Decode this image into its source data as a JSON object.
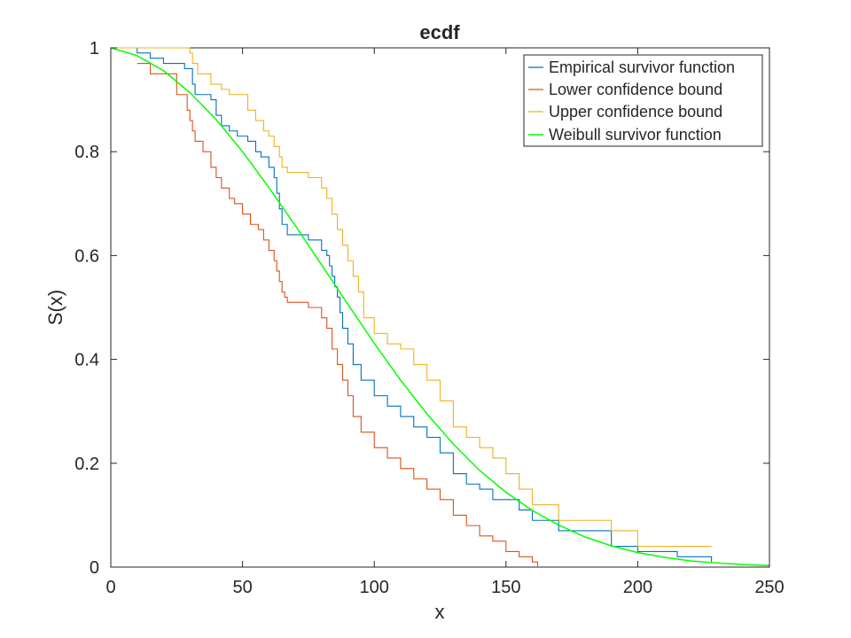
{
  "chart_data": {
    "type": "line",
    "title": "ecdf",
    "xlabel": "x",
    "ylabel": "S(x)",
    "xlim": [
      0,
      250
    ],
    "ylim": [
      0,
      1
    ],
    "xticks": [
      0,
      50,
      100,
      150,
      200,
      250
    ],
    "yticks": [
      0,
      0.2,
      0.4,
      0.6,
      0.8,
      1
    ],
    "ytick_labels": [
      "0",
      "0.2",
      "0.4",
      "0.6",
      "0.8",
      "1"
    ],
    "grid": false,
    "legend_position": "top-right",
    "series": [
      {
        "name": "Empirical survivor function",
        "color": "#0072bd",
        "style": "step",
        "x": [
          0,
          10,
          15,
          20,
          28,
          31,
          32,
          38,
          40,
          42,
          45,
          48,
          52,
          55,
          57,
          60,
          62,
          63,
          64,
          65,
          67,
          75,
          80,
          82,
          83,
          84,
          85,
          86,
          87,
          88,
          90,
          92,
          95,
          100,
          105,
          110,
          115,
          120,
          125,
          130,
          135,
          140,
          145,
          155,
          160,
          170,
          190,
          200,
          215,
          228
        ],
        "y": [
          1,
          0.99,
          0.98,
          0.97,
          0.96,
          0.93,
          0.91,
          0.9,
          0.87,
          0.85,
          0.84,
          0.83,
          0.82,
          0.8,
          0.79,
          0.77,
          0.75,
          0.72,
          0.69,
          0.66,
          0.64,
          0.63,
          0.61,
          0.6,
          0.58,
          0.56,
          0.54,
          0.52,
          0.49,
          0.46,
          0.43,
          0.39,
          0.36,
          0.33,
          0.31,
          0.29,
          0.27,
          0.25,
          0.22,
          0.18,
          0.16,
          0.15,
          0.13,
          0.11,
          0.09,
          0.07,
          0.04,
          0.03,
          0.02,
          0.01
        ]
      },
      {
        "name": "Lower confidence bound",
        "color": "#d95319",
        "style": "step",
        "x": [
          10,
          15,
          25,
          29,
          30,
          31,
          32,
          35,
          38,
          40,
          42,
          45,
          47,
          50,
          53,
          56,
          58,
          60,
          62,
          63,
          64,
          65,
          66,
          67,
          75,
          80,
          82,
          84,
          86,
          88,
          90,
          92,
          95,
          100,
          105,
          110,
          115,
          120,
          125,
          130,
          135,
          140,
          145,
          150,
          155,
          160,
          162
        ],
        "y": [
          0.97,
          0.95,
          0.91,
          0.88,
          0.86,
          0.84,
          0.82,
          0.8,
          0.77,
          0.75,
          0.73,
          0.71,
          0.7,
          0.68,
          0.66,
          0.65,
          0.63,
          0.61,
          0.59,
          0.57,
          0.55,
          0.53,
          0.52,
          0.51,
          0.5,
          0.48,
          0.46,
          0.42,
          0.39,
          0.36,
          0.33,
          0.29,
          0.26,
          0.23,
          0.21,
          0.19,
          0.17,
          0.15,
          0.13,
          0.1,
          0.08,
          0.06,
          0.05,
          0.03,
          0.02,
          0.01,
          0
        ]
      },
      {
        "name": "Upper confidence bound",
        "color": "#edb120",
        "style": "step",
        "x": [
          0,
          30,
          31,
          33,
          38,
          42,
          45,
          52,
          55,
          58,
          60,
          62,
          64,
          65,
          67,
          70,
          75,
          80,
          82,
          84,
          86,
          88,
          90,
          92,
          94,
          96,
          100,
          105,
          110,
          115,
          120,
          125,
          130,
          135,
          140,
          145,
          150,
          155,
          160,
          170,
          190,
          200,
          228
        ],
        "y": [
          1,
          0.99,
          0.97,
          0.95,
          0.93,
          0.92,
          0.91,
          0.88,
          0.86,
          0.84,
          0.83,
          0.81,
          0.79,
          0.77,
          0.76,
          0.76,
          0.75,
          0.73,
          0.71,
          0.68,
          0.65,
          0.62,
          0.59,
          0.56,
          0.53,
          0.48,
          0.45,
          0.43,
          0.42,
          0.39,
          0.36,
          0.32,
          0.27,
          0.25,
          0.23,
          0.21,
          0.18,
          0.15,
          0.12,
          0.09,
          0.07,
          0.04,
          0.04
        ]
      },
      {
        "name": "Weibull survivor function",
        "color": "#00ff00",
        "style": "curve",
        "x": [
          0,
          10,
          20,
          30,
          40,
          50,
          60,
          70,
          80,
          90,
          100,
          110,
          120,
          130,
          140,
          150,
          160,
          170,
          180,
          190,
          200,
          210,
          220,
          230,
          240,
          250
        ],
        "y": [
          1,
          0.985,
          0.956,
          0.914,
          0.862,
          0.8,
          0.731,
          0.658,
          0.582,
          0.506,
          0.431,
          0.36,
          0.295,
          0.237,
          0.186,
          0.144,
          0.109,
          0.081,
          0.058,
          0.041,
          0.028,
          0.019,
          0.012,
          0.008,
          0.005,
          0.003
        ]
      }
    ]
  }
}
